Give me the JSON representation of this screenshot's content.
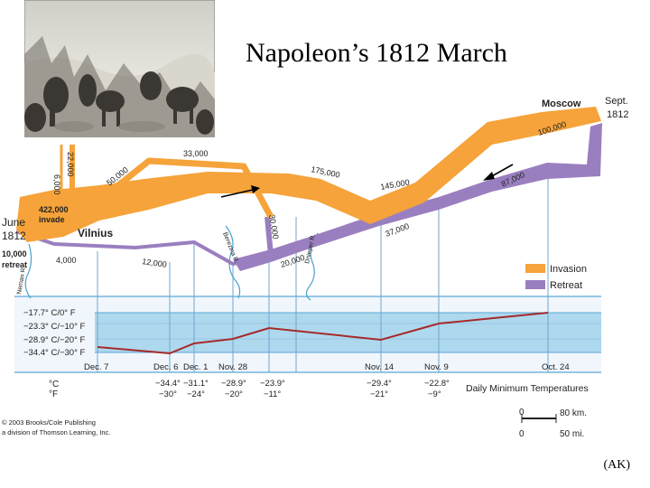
{
  "title": "Napoleon’s 1812 March",
  "credit": "(AK)",
  "copyright": {
    "line1": "© 2003 Brooks/Cole Publishing",
    "line2": "a division of Thomson Learning, Inc."
  },
  "places": {
    "start_date_1": "June",
    "start_date_2": "1812",
    "moscow": "Moscow",
    "moscow_date_1": "Sept.",
    "moscow_date_2": "1812",
    "vilnius": "Vilnius",
    "berezina": "Berezina R.",
    "dnieper": "Dnieper R.",
    "neman": "Neman R."
  },
  "troops": {
    "start_1": "422,000",
    "start_2": "invade",
    "retreat_end_1": "10,000",
    "retreat_end_2": "retreat",
    "north_6000": "6,000",
    "north_22000": "22,000",
    "n_50000": "50,000",
    "n_33000": "33,000",
    "n_175000": "175,000",
    "n_145000": "145,000",
    "n_100000": "100,000",
    "n_87000": "87,000",
    "n_37000": "37,000",
    "n_30000": "30,000",
    "n_20000": "20,000",
    "n_12000": "12,000",
    "n_4000": "4,000"
  },
  "legend": {
    "invasion": "Invasion",
    "retreat": "Retreat",
    "invasion_color": "#f5a33a",
    "retreat_color": "#9a7fc0"
  },
  "temperature": {
    "axis_labels": [
      "−17.7° C/0° F",
      "−23.3° C/−10° F",
      "−28.9° C/−20° F",
      "−34.4° C/−30° F"
    ],
    "dates": [
      "Dec. 7",
      "Dec. 6",
      "Dec. 1",
      "Nov. 28",
      "Nov. 14",
      "Nov. 9",
      "Oct. 24"
    ],
    "readings_c": [
      "−34.4°",
      "−31.1°",
      "−28.9°",
      "−23.9°",
      "−29.4°",
      "−22.8°"
    ],
    "readings_f": [
      "−30°",
      "−24°",
      "−20°",
      "−11°",
      "−21°",
      "−9°"
    ],
    "unit_c": "°C",
    "unit_f": "°F",
    "caption": "Daily Minimum Temperatures"
  },
  "scale": {
    "zero_km": "0",
    "km": "80 km.",
    "zero_mi": "0",
    "mi": "50 mi."
  }
}
